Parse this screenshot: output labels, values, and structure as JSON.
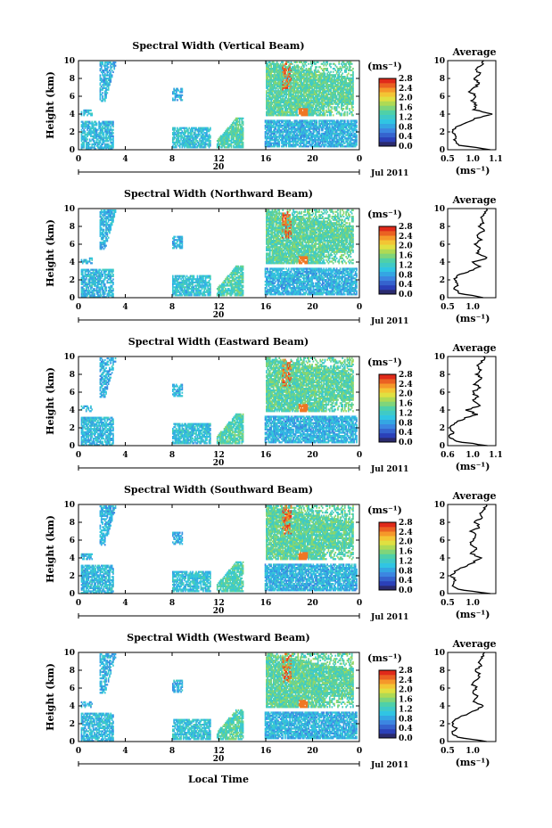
{
  "figure": {
    "x_axis_label": "Local Time",
    "date_label": "Jul 2011",
    "day_label": "20",
    "x_ticks": [
      "0",
      "4",
      "8",
      "12",
      "16",
      "20",
      "0"
    ],
    "y_ticks": [
      "0",
      "2",
      "4",
      "6",
      "8",
      "10"
    ],
    "y_label": "Height (km)",
    "colorbar_unit": "(ms⁻¹)",
    "colorbar_ticks": [
      "0.0",
      "0.4",
      "0.8",
      "1.2",
      "1.6",
      "2.0",
      "2.4",
      "2.8"
    ],
    "avg_title": "Average",
    "avg_unit": "(ms⁻¹)",
    "colors": {
      "low": "#2b2b7a",
      "mid": "#2ec4e6",
      "high": "#e8301c",
      "axis": "#000000"
    }
  },
  "chart_data": [
    {
      "type": "heatmap",
      "title": "Spectral Width (Vertical Beam)",
      "xlabel": "Local Time",
      "ylabel": "Height (km)",
      "xlim": [
        0,
        24
      ],
      "ylim": [
        0,
        10
      ],
      "clim": [
        0.0,
        2.8
      ],
      "data_blocks_hours": [
        [
          0,
          3
        ],
        [
          8,
          9
        ],
        [
          10,
          11.5
        ],
        [
          11.8,
          14
        ],
        [
          15.8,
          23.9
        ]
      ],
      "avg_profile": {
        "title": "Average",
        "xticks": [
          "0.5",
          "1.0",
          "1.1"
        ],
        "xlim": [
          0.5,
          1.1
        ],
        "height_km": [
          0,
          0.5,
          1,
          1.5,
          2,
          2.5,
          3,
          3.5,
          4,
          4.5,
          5,
          5.5,
          6,
          6.5,
          7,
          7.5,
          8,
          8.5,
          9,
          9.5,
          10
        ],
        "value": [
          1.05,
          0.65,
          0.58,
          0.62,
          0.56,
          0.6,
          0.72,
          0.85,
          1.05,
          0.82,
          0.86,
          0.8,
          0.86,
          0.78,
          0.84,
          0.9,
          0.83,
          0.9,
          0.86,
          0.92,
          0.95
        ]
      }
    },
    {
      "type": "heatmap",
      "title": "Spectral Width (Northward Beam)",
      "xlabel": "Local Time",
      "ylabel": "Height (km)",
      "xlim": [
        0,
        24
      ],
      "ylim": [
        0,
        10
      ],
      "clim": [
        0.0,
        2.8
      ],
      "data_blocks_hours": [
        [
          0,
          3
        ],
        [
          8,
          9
        ],
        [
          10,
          11.5
        ],
        [
          11.8,
          14
        ],
        [
          15.8,
          23.9
        ]
      ],
      "avg_profile": {
        "title": "Average",
        "xticks": [
          "0.5",
          "1.0"
        ],
        "xlim": [
          0.5,
          1.1
        ],
        "height_km": [
          0,
          0.5,
          1,
          1.5,
          2,
          2.5,
          3,
          3.5,
          4,
          4.5,
          5,
          5.5,
          6,
          6.5,
          7,
          7.5,
          8,
          8.5,
          9,
          9.5,
          10
        ],
        "value": [
          0.95,
          0.65,
          0.58,
          0.62,
          0.58,
          0.62,
          0.78,
          0.9,
          0.82,
          1.0,
          0.86,
          0.9,
          0.84,
          0.92,
          0.86,
          0.95,
          0.9,
          0.95,
          0.92,
          0.96,
          0.98
        ]
      }
    },
    {
      "type": "heatmap",
      "title": "Spectral Width (Eastward Beam)",
      "xlabel": "Local Time",
      "ylabel": "Height (km)",
      "xlim": [
        0,
        24
      ],
      "ylim": [
        0,
        10
      ],
      "clim": [
        0.0,
        2.8
      ],
      "data_blocks_hours": [
        [
          0,
          3
        ],
        [
          8,
          9
        ],
        [
          10,
          11.5
        ],
        [
          11.8,
          14
        ],
        [
          15.8,
          23.9
        ]
      ],
      "avg_profile": {
        "title": "Average",
        "xticks": [
          "0.6",
          "1.0",
          "1.1"
        ],
        "xlim": [
          0.6,
          1.1
        ],
        "height_km": [
          0,
          0.5,
          1,
          1.5,
          2,
          2.5,
          3,
          3.5,
          4,
          4.5,
          5,
          5.5,
          6,
          6.5,
          7,
          7.5,
          8,
          8.5,
          9,
          9.5,
          10
        ],
        "value": [
          1.02,
          0.68,
          0.62,
          0.66,
          0.62,
          0.66,
          0.76,
          0.9,
          0.8,
          0.95,
          0.85,
          0.9,
          0.86,
          0.92,
          0.88,
          0.96,
          0.9,
          0.94,
          0.9,
          0.96,
          0.97
        ]
      }
    },
    {
      "type": "heatmap",
      "title": "Spectral Width (Southward Beam)",
      "xlabel": "Local Time",
      "ylabel": "Height (km)",
      "xlim": [
        0,
        24
      ],
      "ylim": [
        0,
        10
      ],
      "clim": [
        0.0,
        2.8
      ],
      "data_blocks_hours": [
        [
          0,
          3
        ],
        [
          8,
          9
        ],
        [
          10,
          11.5
        ],
        [
          11.8,
          14
        ],
        [
          15.8,
          23.9
        ]
      ],
      "avg_profile": {
        "title": "Average",
        "xticks": [
          "0.5",
          "1.0"
        ],
        "xlim": [
          0.5,
          1.1
        ],
        "height_km": [
          0,
          0.5,
          1,
          1.5,
          2,
          2.5,
          3,
          3.5,
          4,
          4.5,
          5,
          5.5,
          6,
          6.5,
          7,
          7.5,
          8,
          8.5,
          9,
          9.5,
          10
        ],
        "value": [
          1.02,
          0.62,
          0.56,
          0.6,
          0.55,
          0.6,
          0.7,
          0.82,
          0.9,
          0.8,
          0.86,
          0.78,
          0.82,
          0.86,
          0.8,
          0.9,
          0.84,
          0.92,
          0.9,
          0.95,
          0.98
        ]
      }
    },
    {
      "type": "heatmap",
      "title": "Spectral Width (Westward Beam)",
      "xlabel": "Local Time",
      "ylabel": "Height (km)",
      "xlim": [
        0,
        24
      ],
      "ylim": [
        0,
        10
      ],
      "clim": [
        0.0,
        2.8
      ],
      "data_blocks_hours": [
        [
          0,
          3
        ],
        [
          8,
          9
        ],
        [
          10,
          11.5
        ],
        [
          11.8,
          14
        ],
        [
          15.8,
          23.9
        ]
      ],
      "avg_profile": {
        "title": "Average",
        "xticks": [
          "0.5",
          "1.0"
        ],
        "xlim": [
          0.5,
          1.1
        ],
        "height_km": [
          0,
          0.5,
          1,
          1.5,
          2,
          2.5,
          3,
          3.5,
          4,
          4.5,
          5,
          5.5,
          6,
          6.5,
          7,
          7.5,
          8,
          8.5,
          9,
          9.5,
          10
        ],
        "value": [
          0.98,
          0.62,
          0.56,
          0.6,
          0.56,
          0.6,
          0.72,
          0.84,
          0.95,
          0.82,
          0.88,
          0.82,
          0.86,
          0.8,
          0.86,
          0.9,
          0.84,
          0.92,
          0.88,
          0.94,
          0.96
        ]
      }
    }
  ]
}
